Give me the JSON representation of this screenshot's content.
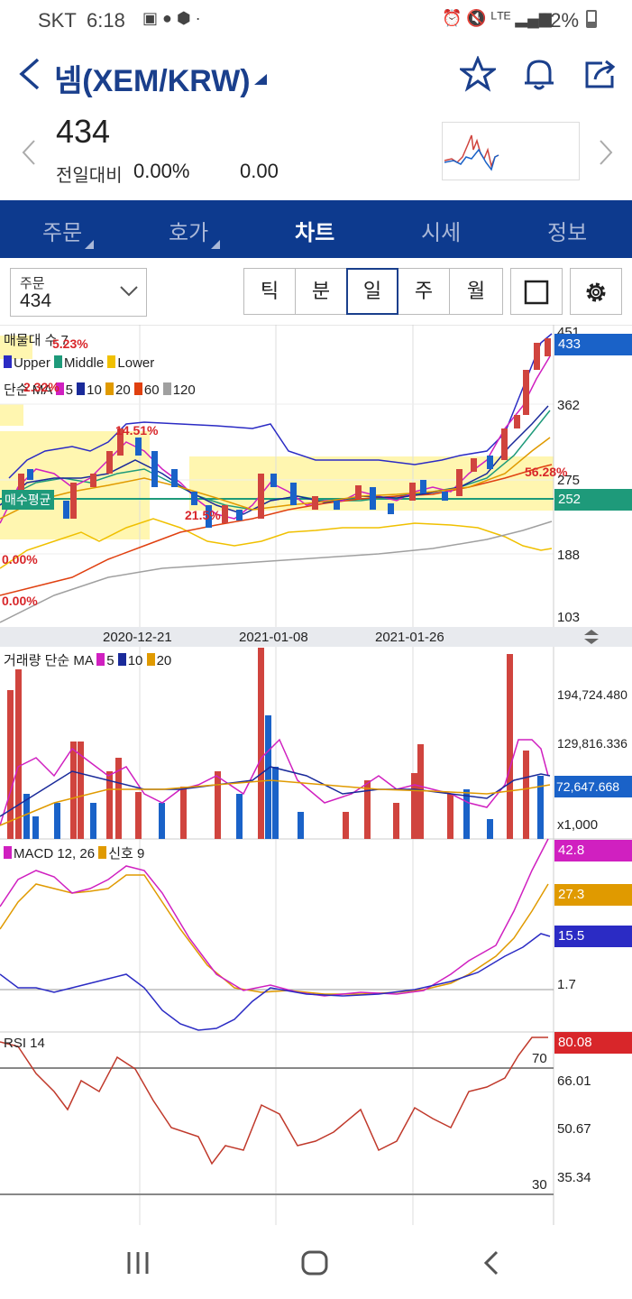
{
  "status_bar": {
    "carrier": "SKT",
    "time": "6:18",
    "battery": "32%"
  },
  "header": {
    "title": "넴(XEM/KRW)"
  },
  "price": {
    "current": "434",
    "change_label": "전일대비",
    "change_pct": "0.00%",
    "change_abs": "0.00"
  },
  "tabs": [
    {
      "label": "주문"
    },
    {
      "label": "호가"
    },
    {
      "label": "차트"
    },
    {
      "label": "시세"
    },
    {
      "label": "정보"
    }
  ],
  "order_select": {
    "label": "주문",
    "value": "434"
  },
  "period_buttons": [
    {
      "label": "틱"
    },
    {
      "label": "분"
    },
    {
      "label": "일"
    },
    {
      "label": "주"
    },
    {
      "label": "월"
    }
  ],
  "main_chart": {
    "legend_volume_profile": "매물대 수 7",
    "legend_bands": [
      "Upper",
      "Middle",
      "Lower"
    ],
    "legend_ma": {
      "prefix": "단순 MA",
      "periods": [
        "5",
        "10",
        "20",
        "60",
        "120"
      ]
    },
    "y_ticks": [
      "451",
      "362",
      "275",
      "188",
      "103"
    ],
    "current_price_badge": "433",
    "avg_price_badge": "252",
    "avg_price_label": "매수평균",
    "profile_labels": [
      "5.23%",
      "2.32%",
      "14.51%",
      "21.5%",
      "56.28%",
      "0.00%",
      "0.00%"
    ],
    "x_labels": [
      "2020-12-21",
      "2021-01-08",
      "2021-01-26"
    ]
  },
  "volume_chart": {
    "legend": {
      "prefix": "거래량 단순 MA",
      "periods": [
        "5",
        "10",
        "20"
      ]
    },
    "y_ticks": [
      "194,724.480",
      "129,816.336"
    ],
    "badge": "72,647.668",
    "unit": "x1,000"
  },
  "macd_chart": {
    "legend": {
      "prefix": "MACD 12, 26",
      "signal": "신호 9"
    },
    "badges": [
      "42.8",
      "27.3",
      "15.5"
    ],
    "y_ticks": [
      "1.7"
    ]
  },
  "rsi_chart": {
    "legend": "RSI 14",
    "badge": "80.08",
    "y_ticks": [
      "66.01",
      "50.67",
      "35.34"
    ],
    "upper_line": "70",
    "lower_line": "30"
  },
  "colors": {
    "brand": "#0d3a8e",
    "up": "#d0443e",
    "down": "#1a62c8",
    "upper_band": "#2b2bc4",
    "middle_band": "#1e9a7a",
    "lower_band": "#f0c000",
    "ma5": "#d020c0",
    "ma10": "#1a2a9a",
    "ma20": "#e09a00",
    "ma60": "#e04010",
    "ma120": "#a0a0a0"
  }
}
